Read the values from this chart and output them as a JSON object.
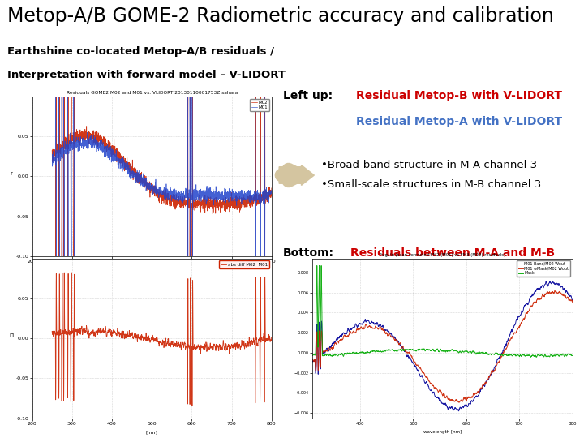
{
  "title": "Metop-A/B GOME-2 Radiometric accuracy and calibration",
  "subtitle_line1": "Earthshine co-located Metop-A/B residuals /",
  "subtitle_line2": "Interpretation with forward model – V-LIDORT",
  "title_fontsize": 17,
  "subtitle_fontsize": 9.5,
  "bg_color": "#ffffff",
  "left_up_label": "Left up:",
  "left_up_text1": "Residual Metop-B with V-LIDORT",
  "left_up_text2": "Residual Metop-A with V-LIDORT",
  "left_up_color1": "#cc0000",
  "left_up_color2": "#4472c4",
  "bullet1": "•Broad-band structure in M-A channel 3",
  "bullet2": "•Small-scale structures in M-B channel 3",
  "bullet_color": "#000000",
  "bottom_label": "Bottom:",
  "bottom_text": "Residuals between M-A and M-B",
  "bottom_text_color": "#cc0000",
  "arrow_color": "#d4c5a0"
}
